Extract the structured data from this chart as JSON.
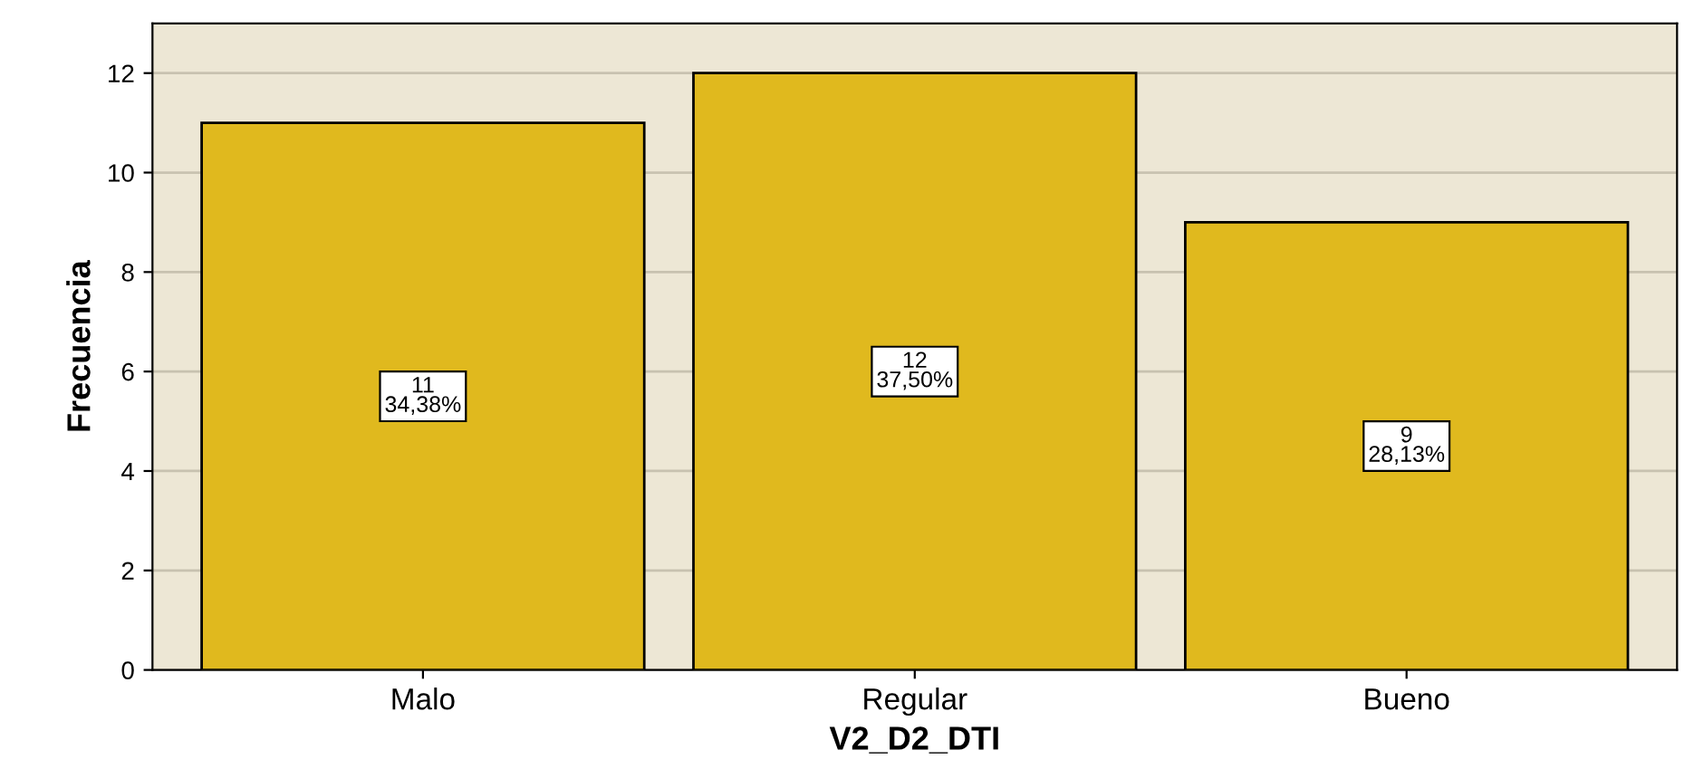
{
  "chart_data": {
    "type": "bar",
    "xlabel": "V2_D2_DTI",
    "ylabel": "Frecuencia",
    "categories": [
      "Malo",
      "Regular",
      "Bueno"
    ],
    "values": [
      11,
      12,
      9
    ],
    "value_labels": [
      "11\n34,38%",
      "12\n37,50%",
      "9\n28,13%"
    ],
    "color": "#e0b91e",
    "ylim": [
      0,
      13
    ],
    "yticks": [
      0,
      2,
      4,
      6,
      8,
      10,
      12
    ],
    "grid": "y"
  }
}
